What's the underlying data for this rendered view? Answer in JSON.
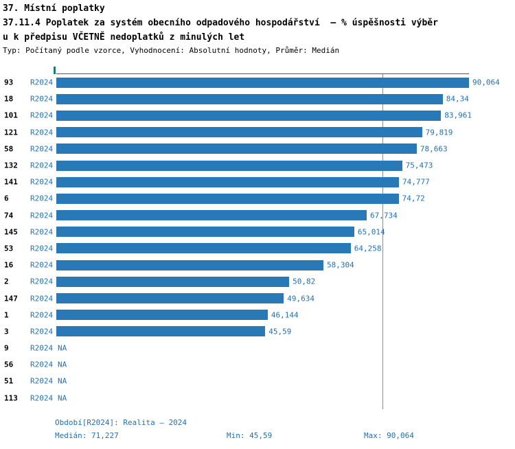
{
  "header": {
    "line1": "37. Místní poplatky",
    "line2": "37.11.4 Poplatek za systém obecního odpadového hospodářství  – % úspěšnosti výběr",
    "line3": "u k předpisu VČETNĚ nedoplatků z minulých let",
    "meta": "Typ: Počítaný podle vzorce, Vyhodnocení: Absolutní hodnoty, Průměr: Medián"
  },
  "chart_data": {
    "type": "bar",
    "orientation": "horizontal",
    "title": "37.11.4 Poplatek za systém obecního odpadového hospodářství – % úspěšnosti výběru k předpisu VČETNĚ nedoplatků z minulých let",
    "series_label": "R2024",
    "categories": [
      "93",
      "18",
      "101",
      "121",
      "58",
      "132",
      "141",
      "6",
      "74",
      "145",
      "53",
      "16",
      "2",
      "147",
      "1",
      "3",
      "9",
      "56",
      "51",
      "113"
    ],
    "values": [
      90.064,
      84.34,
      83.961,
      79.819,
      78.663,
      75.473,
      74.777,
      74.72,
      67.734,
      65.014,
      64.258,
      58.304,
      50.82,
      49.634,
      46.144,
      45.59,
      null,
      null,
      null,
      null
    ],
    "value_labels": [
      "90,064",
      "84,34",
      "83,961",
      "79,819",
      "78,663",
      "75,473",
      "74,777",
      "74,72",
      "67,734",
      "65,014",
      "64,258",
      "58,304",
      "50,82",
      "49,634",
      "46,144",
      "45,59",
      "NA",
      "NA",
      "NA",
      "NA"
    ],
    "xlim": [
      0,
      90.064
    ],
    "median": 71.227,
    "min": 45.59,
    "max": 90.064,
    "grid": false,
    "legend": "none",
    "xlabel": "",
    "ylabel": ""
  },
  "footer": {
    "period": "Období[R2024]: Realita – 2024",
    "median": "Medián: 71,227",
    "min": "Min: 45,59",
    "max": "Max: 90,064"
  },
  "colors": {
    "bar": "#2879b6",
    "accent_text": "#2271b3",
    "axis": "#555555",
    "median_line": "#5b97c8",
    "tick": "#1c7f6d"
  }
}
